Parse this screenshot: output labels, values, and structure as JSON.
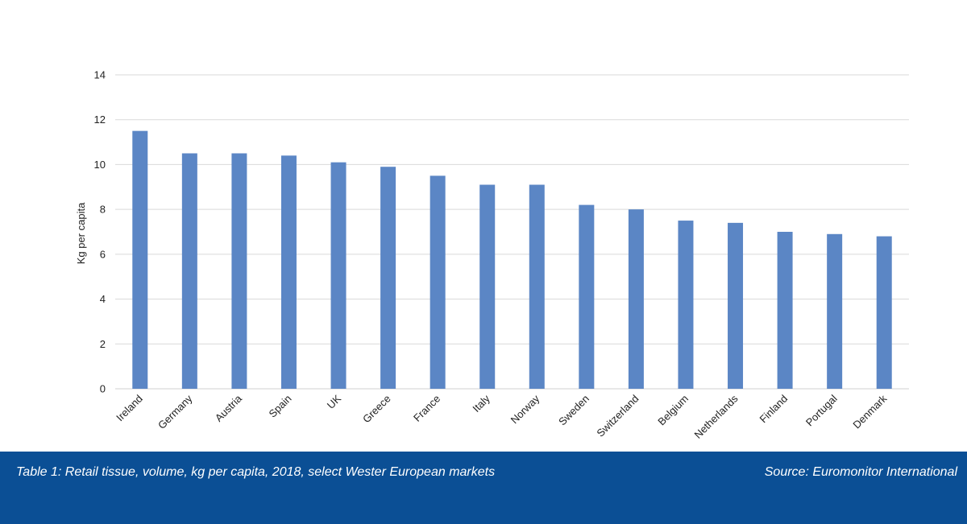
{
  "chart_data": {
    "type": "bar",
    "categories": [
      "Ireland",
      "Germany",
      "Austria",
      "Spain",
      "UK",
      "Greece",
      "France",
      "Italy",
      "Norway",
      "Sweden",
      "Switzerland",
      "Belgium",
      "Netherlands",
      "Finland",
      "Portugal",
      "Denmark"
    ],
    "values": [
      11.5,
      10.5,
      10.5,
      10.4,
      10.1,
      9.9,
      9.5,
      9.1,
      9.1,
      8.2,
      8.0,
      7.5,
      7.4,
      7.0,
      6.9,
      6.8
    ],
    "ylabel": "Kg per capita",
    "ylim": [
      0,
      14
    ],
    "yticks": [
      0,
      2,
      4,
      6,
      8,
      10,
      12,
      14
    ],
    "grid": true,
    "bar_color": "#5b86c5"
  },
  "footer": {
    "caption": "Table 1: Retail tissue, volume, kg per capita, 2018, select Wester European markets",
    "source": "Source: Euromonitor International",
    "background": "#0b4f95"
  }
}
